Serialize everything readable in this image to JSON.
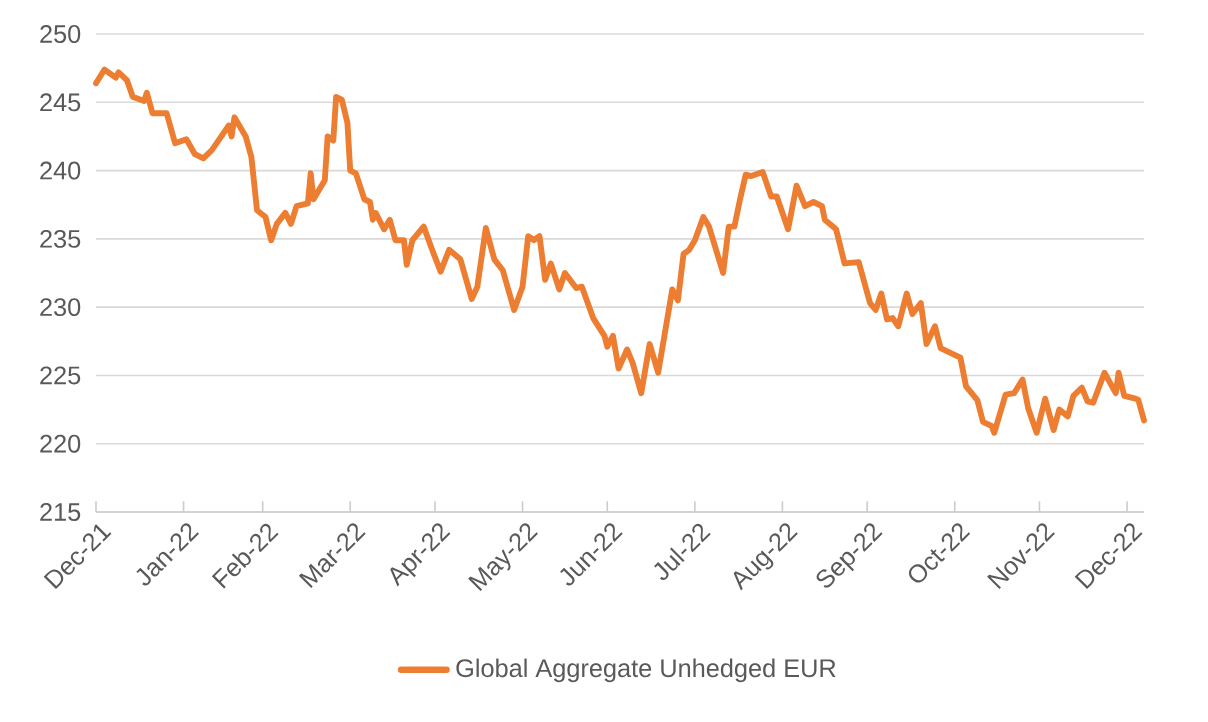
{
  "chart_data": {
    "type": "line",
    "x": [
      "2021-12-31",
      "2022-01-03",
      "2022-01-05",
      "2022-01-07",
      "2022-01-08",
      "2022-01-11",
      "2022-01-13",
      "2022-01-17",
      "2022-01-18",
      "2022-01-20",
      "2022-01-25",
      "2022-01-28",
      "2022-02-01",
      "2022-02-04",
      "2022-02-07",
      "2022-02-10",
      "2022-02-13",
      "2022-02-16",
      "2022-02-17",
      "2022-02-18",
      "2022-02-22",
      "2022-02-24",
      "2022-02-26",
      "2022-03-01",
      "2022-03-03",
      "2022-03-05",
      "2022-03-08",
      "2022-03-10",
      "2022-03-12",
      "2022-03-16",
      "2022-03-17",
      "2022-03-18",
      "2022-03-22",
      "2022-03-23",
      "2022-03-25",
      "2022-03-26",
      "2022-03-28",
      "2022-03-30",
      "2022-03-31",
      "2022-04-02",
      "2022-04-05",
      "2022-04-07",
      "2022-04-08",
      "2022-04-09",
      "2022-04-12",
      "2022-04-14",
      "2022-04-16",
      "2022-04-19",
      "2022-04-20",
      "2022-04-22",
      "2022-04-26",
      "2022-04-29",
      "2022-05-02",
      "2022-05-05",
      "2022-05-09",
      "2022-05-13",
      "2022-05-15",
      "2022-05-18",
      "2022-05-21",
      "2022-05-24",
      "2022-05-28",
      "2022-05-31",
      "2022-06-02",
      "2022-06-04",
      "2022-06-06",
      "2022-06-08",
      "2022-06-10",
      "2022-06-13",
      "2022-06-15",
      "2022-06-19",
      "2022-06-21",
      "2022-06-25",
      "2022-06-29",
      "2022-06-30",
      "2022-07-02",
      "2022-07-04",
      "2022-07-07",
      "2022-07-09",
      "2022-07-12",
      "2022-07-15",
      "2022-07-18",
      "2022-07-23",
      "2022-07-25",
      "2022-07-27",
      "2022-07-29",
      "2022-07-31",
      "2022-08-03",
      "2022-08-05",
      "2022-08-10",
      "2022-08-12",
      "2022-08-14",
      "2022-08-16",
      "2022-08-18",
      "2022-08-20",
      "2022-08-24",
      "2022-08-27",
      "2022-08-29",
      "2022-09-02",
      "2022-09-05",
      "2022-09-08",
      "2022-09-11",
      "2022-09-14",
      "2022-09-15",
      "2022-09-19",
      "2022-09-22",
      "2022-09-27",
      "2022-10-01",
      "2022-10-03",
      "2022-10-05",
      "2022-10-07",
      "2022-10-09",
      "2022-10-11",
      "2022-10-14",
      "2022-10-16",
      "2022-10-19",
      "2022-10-21",
      "2022-10-24",
      "2022-10-26",
      "2022-10-30",
      "2022-11-02",
      "2022-11-04",
      "2022-11-08",
      "2022-11-10",
      "2022-11-13",
      "2022-11-14",
      "2022-11-18",
      "2022-11-21",
      "2022-11-24",
      "2022-11-26",
      "2022-11-29",
      "2022-12-02",
      "2022-12-05",
      "2022-12-07",
      "2022-12-10",
      "2022-12-12",
      "2022-12-15",
      "2022-12-17",
      "2022-12-19",
      "2022-12-23",
      "2022-12-27",
      "2022-12-28",
      "2022-12-30",
      "2023-01-03",
      "2023-01-04",
      "2023-01-06"
    ],
    "series": [
      {
        "name": "Global Aggregate Unhedged EUR",
        "color": "#ed7d31",
        "values": [
          246.4,
          247.4,
          247.1,
          246.8,
          247.2,
          246.6,
          245.4,
          245.1,
          245.7,
          244.2,
          244.2,
          242.0,
          242.3,
          241.2,
          240.9,
          241.5,
          242.4,
          243.3,
          242.5,
          243.9,
          242.5,
          241.0,
          237.1,
          236.6,
          234.9,
          236.1,
          236.9,
          236.1,
          237.4,
          237.6,
          239.8,
          237.9,
          239.3,
          242.5,
          242.2,
          245.4,
          245.2,
          243.5,
          240.0,
          239.8,
          237.9,
          237.7,
          236.4,
          236.9,
          235.7,
          236.4,
          234.9,
          234.9,
          233.1,
          234.9,
          235.9,
          234.2,
          232.6,
          234.2,
          233.5,
          230.6,
          231.5,
          235.8,
          233.5,
          232.7,
          229.8,
          231.5,
          235.2,
          234.9,
          235.2,
          232.0,
          233.2,
          231.3,
          232.5,
          231.4,
          231.5,
          229.2,
          227.9,
          227.1,
          227.9,
          225.5,
          226.9,
          225.9,
          223.7,
          227.3,
          225.2,
          231.3,
          230.5,
          233.9,
          234.2,
          234.9,
          236.6,
          235.9,
          232.5,
          235.9,
          235.9,
          237.9,
          239.7,
          239.6,
          239.9,
          238.1,
          238.1,
          235.7,
          238.9,
          237.4,
          237.7,
          237.4,
          236.4,
          235.7,
          233.2,
          233.3,
          230.3,
          229.8,
          231.0,
          229.1,
          229.2,
          228.6,
          231.0,
          229.5,
          230.3,
          227.3,
          228.6,
          227.0,
          226.6,
          226.3,
          224.2,
          223.2,
          221.6,
          221.3,
          220.8,
          223.6,
          223.7,
          224.7,
          222.6,
          220.8,
          223.3,
          221.0,
          222.5,
          222.0,
          223.5,
          224.1,
          223.1,
          223.0,
          225.2,
          223.7,
          225.2,
          223.5,
          223.3,
          223.2,
          221.7
        ]
      }
    ],
    "xlim": [
      "2021-12-31",
      "2023-01-06"
    ],
    "xticks": [
      {
        "value": "2021-12-31",
        "label": "Dec-21"
      },
      {
        "value": "2022-01-31",
        "label": "Jan-22"
      },
      {
        "value": "2022-02-28",
        "label": "Feb-22"
      },
      {
        "value": "2022-03-31",
        "label": "Mar-22"
      },
      {
        "value": "2022-04-30",
        "label": "Apr-22"
      },
      {
        "value": "2022-05-31",
        "label": "May-22"
      },
      {
        "value": "2022-06-30",
        "label": "Jun-22"
      },
      {
        "value": "2022-07-31",
        "label": "Jul-22"
      },
      {
        "value": "2022-08-31",
        "label": "Aug-22"
      },
      {
        "value": "2022-09-30",
        "label": "Sep-22"
      },
      {
        "value": "2022-10-31",
        "label": "Oct-22"
      },
      {
        "value": "2022-11-30",
        "label": "Nov-22"
      },
      {
        "value": "2022-12-31",
        "label": "Dec-22"
      }
    ],
    "ylim": [
      215,
      250
    ],
    "yticks": [
      215,
      220,
      225,
      230,
      235,
      240,
      245,
      250
    ],
    "grid": "y",
    "legend": "bottom"
  }
}
